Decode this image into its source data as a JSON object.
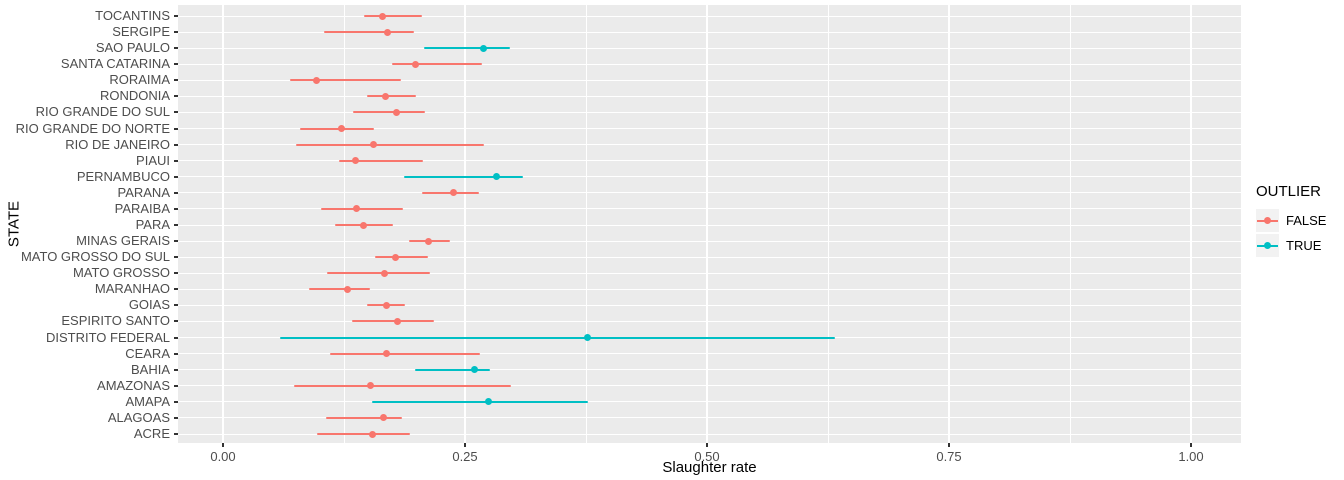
{
  "axes": {
    "x_title": "Slaughter rate",
    "y_title": "STATE"
  },
  "legend": {
    "title": "OUTLIER",
    "items": [
      {
        "label": "FALSE",
        "color": "#F8766D"
      },
      {
        "label": "TRUE",
        "color": "#00BFC4"
      }
    ]
  },
  "style": {
    "panel_bg": "#EBEBEB",
    "gridline": "#FFFFFF",
    "axis_text": "#4D4D4D",
    "title_text": "#000000",
    "tick_mark": "#333333",
    "legend_key_bg": "#F2F2F2",
    "false_color": "#F8766D",
    "true_color": "#00BFC4"
  },
  "chart_data": {
    "type": "scatter",
    "subtype": "point estimates with horizontal error bars (pointrange), discrete y axis",
    "title": "",
    "xlabel": "Slaughter rate",
    "ylabel": "STATE",
    "xlim": [
      -0.047,
      1.052
    ],
    "x_ticks": [
      0.0,
      0.25,
      0.5,
      0.75,
      1.0
    ],
    "x_tick_labels": [
      "0.00",
      "0.25",
      "0.50",
      "0.75",
      "1.00"
    ],
    "x_minor_gridlines": [
      0.125,
      0.375,
      0.625,
      0.875
    ],
    "grid": "on",
    "legend_position": "right",
    "legend_title": "OUTLIER",
    "series": [
      {
        "name": "FALSE",
        "color": "#F8766D"
      },
      {
        "name": "TRUE",
        "color": "#00BFC4"
      }
    ],
    "points": [
      {
        "state": "TOCANTINS",
        "value": 0.165,
        "lower": 0.146,
        "upper": 0.206,
        "outlier": false
      },
      {
        "state": "SERGIPE",
        "value": 0.17,
        "lower": 0.104,
        "upper": 0.197,
        "outlier": false
      },
      {
        "state": "SAO PAULO",
        "value": 0.269,
        "lower": 0.208,
        "upper": 0.296,
        "outlier": true
      },
      {
        "state": "SANTA CATARINA",
        "value": 0.199,
        "lower": 0.175,
        "upper": 0.268,
        "outlier": false
      },
      {
        "state": "RORAIMA",
        "value": 0.097,
        "lower": 0.069,
        "upper": 0.184,
        "outlier": false
      },
      {
        "state": "RONDONIA",
        "value": 0.168,
        "lower": 0.149,
        "upper": 0.199,
        "outlier": false
      },
      {
        "state": "RIO GRANDE DO SUL",
        "value": 0.179,
        "lower": 0.134,
        "upper": 0.209,
        "outlier": false
      },
      {
        "state": "RIO GRANDE DO NORTE",
        "value": 0.122,
        "lower": 0.08,
        "upper": 0.156,
        "outlier": false
      },
      {
        "state": "RIO DE JANEIRO",
        "value": 0.155,
        "lower": 0.075,
        "upper": 0.27,
        "outlier": false
      },
      {
        "state": "PIAUI",
        "value": 0.137,
        "lower": 0.12,
        "upper": 0.207,
        "outlier": false
      },
      {
        "state": "PERNAMBUCO",
        "value": 0.283,
        "lower": 0.187,
        "upper": 0.31,
        "outlier": true
      },
      {
        "state": "PARANA",
        "value": 0.238,
        "lower": 0.206,
        "upper": 0.264,
        "outlier": false
      },
      {
        "state": "PARAIBA",
        "value": 0.138,
        "lower": 0.101,
        "upper": 0.186,
        "outlier": false
      },
      {
        "state": "PARA",
        "value": 0.145,
        "lower": 0.116,
        "upper": 0.176,
        "outlier": false
      },
      {
        "state": "MINAS GERAIS",
        "value": 0.212,
        "lower": 0.192,
        "upper": 0.235,
        "outlier": false
      },
      {
        "state": "MATO GROSSO DO SUL",
        "value": 0.178,
        "lower": 0.157,
        "upper": 0.212,
        "outlier": false
      },
      {
        "state": "MATO GROSSO",
        "value": 0.167,
        "lower": 0.107,
        "upper": 0.214,
        "outlier": false
      },
      {
        "state": "MARANHAO",
        "value": 0.129,
        "lower": 0.089,
        "upper": 0.152,
        "outlier": false
      },
      {
        "state": "GOIAS",
        "value": 0.169,
        "lower": 0.149,
        "upper": 0.188,
        "outlier": false
      },
      {
        "state": "ESPIRITO SANTO",
        "value": 0.18,
        "lower": 0.133,
        "upper": 0.218,
        "outlier": false
      },
      {
        "state": "DISTRITO FEDERAL",
        "value": 0.377,
        "lower": 0.059,
        "upper": 0.632,
        "outlier": true
      },
      {
        "state": "CEARA",
        "value": 0.169,
        "lower": 0.111,
        "upper": 0.266,
        "outlier": false
      },
      {
        "state": "BAHIA",
        "value": 0.26,
        "lower": 0.198,
        "upper": 0.276,
        "outlier": true
      },
      {
        "state": "AMAZONAS",
        "value": 0.152,
        "lower": 0.073,
        "upper": 0.298,
        "outlier": false
      },
      {
        "state": "AMAPA",
        "value": 0.274,
        "lower": 0.154,
        "upper": 0.377,
        "outlier": true
      },
      {
        "state": "ALAGOAS",
        "value": 0.166,
        "lower": 0.106,
        "upper": 0.185,
        "outlier": false
      },
      {
        "state": "ACRE",
        "value": 0.154,
        "lower": 0.097,
        "upper": 0.193,
        "outlier": false
      }
    ]
  }
}
